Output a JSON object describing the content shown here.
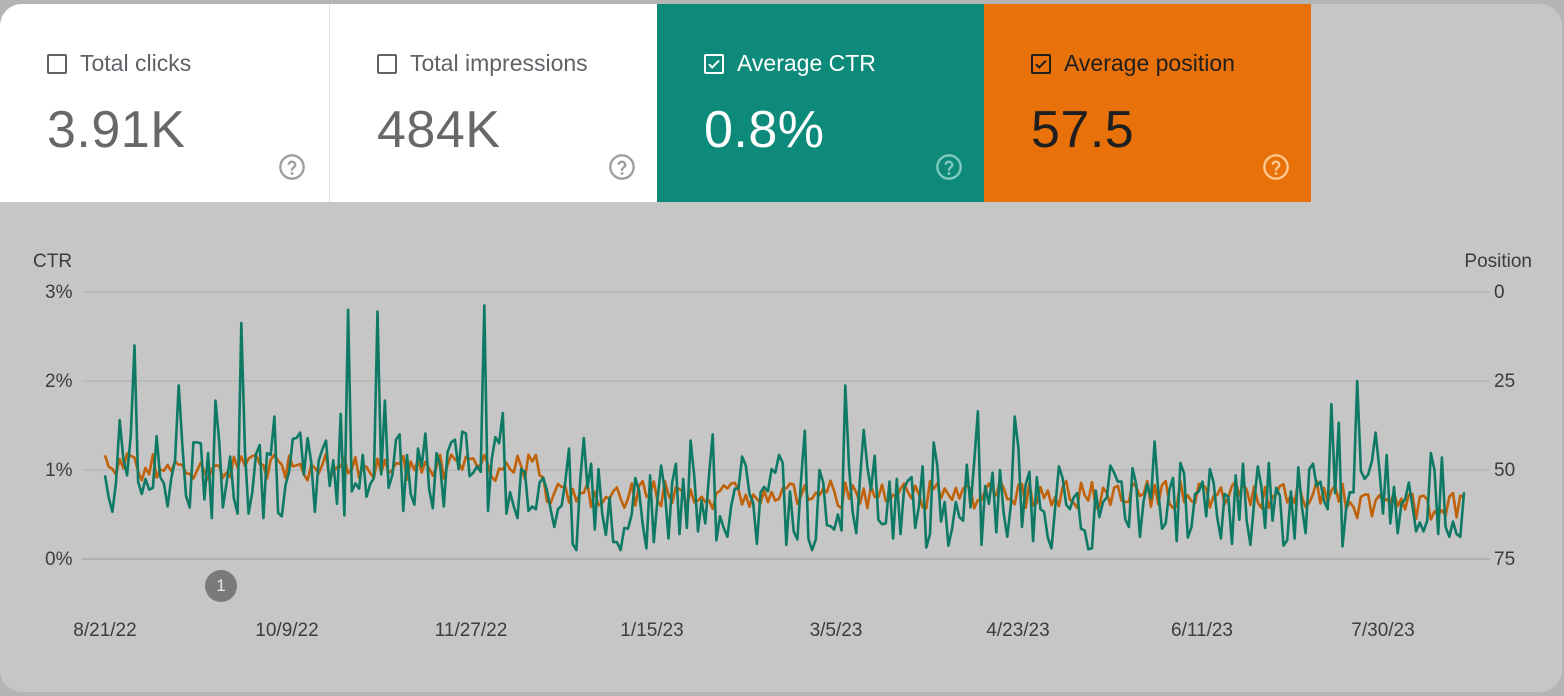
{
  "cards": [
    {
      "label": "Total clicks",
      "value": "3.91K",
      "checked": false
    },
    {
      "label": "Total impressions",
      "value": "484K",
      "checked": false
    },
    {
      "label": "Average CTR",
      "value": "0.8%",
      "checked": true
    },
    {
      "label": "Average position",
      "value": "57.5",
      "checked": true
    }
  ],
  "chart_data": {
    "type": "line",
    "left_axis_title": "CTR",
    "right_axis_title": "Position",
    "left_ticks": [
      "3%",
      "2%",
      "1%",
      "0%"
    ],
    "right_ticks": [
      "0",
      "25",
      "50",
      "75"
    ],
    "x_ticks": [
      "8/21/22",
      "10/9/22",
      "11/27/22",
      "1/15/23",
      "3/5/23",
      "4/23/23",
      "6/11/23",
      "7/30/23"
    ],
    "ylim_left": [
      0,
      3
    ],
    "ylim_right": [
      75,
      0
    ],
    "colors": {
      "ctr": "#0e7a66",
      "position": "#c0620a"
    },
    "annotation": "1",
    "series": [
      {
        "name": "Average CTR",
        "axis": "left",
        "values": []
      },
      {
        "name": "Average position",
        "axis": "right",
        "values": []
      }
    ]
  }
}
